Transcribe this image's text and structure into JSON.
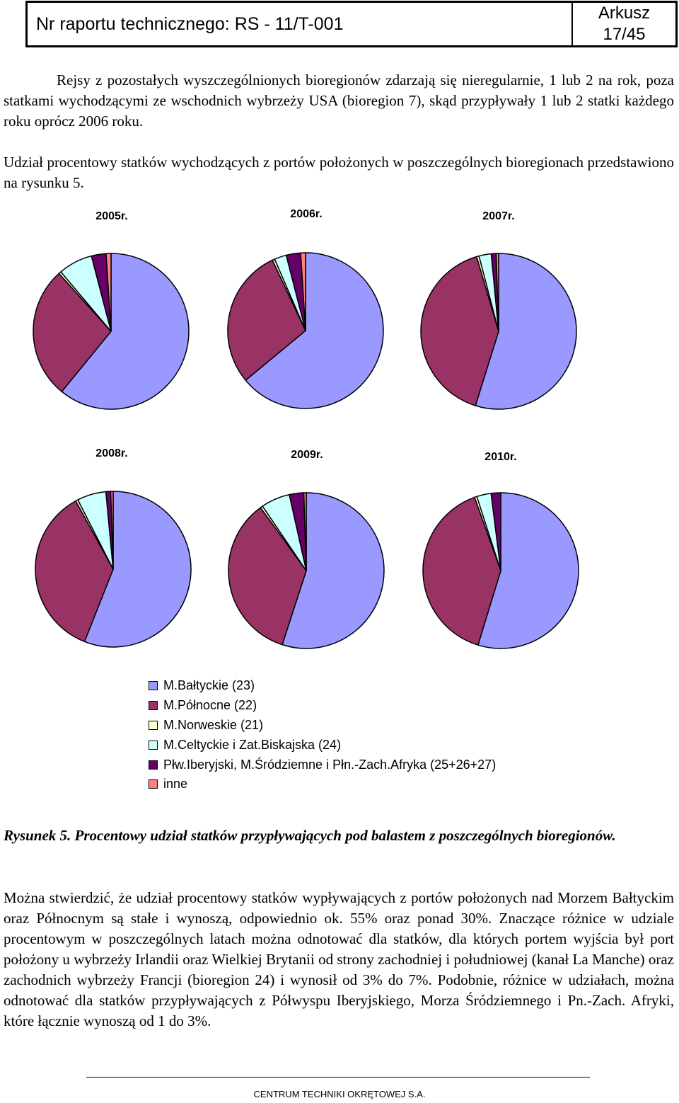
{
  "header": {
    "report_number": "Nr raportu technicznego: RS - 11/T-001",
    "sheet_label": "Arkusz",
    "sheet_number": "17/45"
  },
  "paragraphs": {
    "p1": "Rejsy z pozostałych wyszczególnionych bioregionów zdarzają się nieregularnie, 1 lub 2 na rok, poza statkami wychodzącymi ze wschodnich wybrzeży USA (bioregion 7), skąd przypływały 1 lub 2 statki każdego roku oprócz 2006 roku.",
    "p2": "Udział procentowy statków wychodzących z portów położonych w poszczególnych bioregionach przedstawiono na rysunku 5.",
    "p3": "Można stwierdzić, że udział procentowy statków wypływających z portów położonych nad Morzem Bałtyckim oraz Północnym są stałe i wynoszą, odpowiednio ok. 55% oraz ponad 30%. Znaczące różnice w udziale procentowym w poszczególnych latach można odnotować dla statków, dla których portem wyjścia był port położony u wybrzeży Irlandii oraz Wielkiej Brytanii od strony zachodniej i południowej (kanał La Manche) oraz zachodnich wybrzeży Francji (bioregion 24) i wynosił od 3% do 7%. Podobnie, różnice w udziałach, można odnotować dla statków przypływających z Półwyspu Iberyjskiego, Morza Śródziemnego i Pn.-Zach. Afryki, które łącznie wynoszą od 1 do 3%."
  },
  "caption": "Rysunek 5. Procentowy udział statków przypływających pod balastem z poszczególnych bioregionów.",
  "footer": "CENTRUM TECHNIKI OKRĘTOWEJ S.A.",
  "colors": {
    "baltic": "#9999ff",
    "north": "#993366",
    "norwegian": "#ffffcc",
    "celtic": "#ccffff",
    "iberian": "#660066",
    "other": "#ff8080"
  },
  "chart_data": {
    "type": "pie",
    "legend": [
      {
        "label": "M.Bałtyckie (23)",
        "color": "#9999ff"
      },
      {
        "label": "M.Północne (22)",
        "color": "#993366"
      },
      {
        "label": "M.Norweskie (21)",
        "color": "#ffffcc"
      },
      {
        "label": "M.Celtyckie i Zat.Biskajska (24)",
        "color": "#ccffff"
      },
      {
        "label": "Płw.Iberyjski, M.Śródziemne i Płn.-Zach.Afryka (25+26+27)",
        "color": "#660066"
      },
      {
        "label": "inne",
        "color": "#ff8080"
      }
    ],
    "pies": [
      {
        "title": "2005r.",
        "values": [
          60,
          27,
          0.5,
          7,
          3,
          1
        ]
      },
      {
        "title": "2006r.",
        "values": [
          64,
          29,
          0.5,
          2.5,
          3,
          1
        ]
      },
      {
        "title": "2007r.",
        "values": [
          54,
          40,
          0.5,
          2.5,
          1,
          0.5
        ]
      },
      {
        "title": "2008r.",
        "values": [
          56,
          36,
          0.5,
          6,
          1,
          0.5
        ]
      },
      {
        "title": "2009r.",
        "values": [
          55,
          35,
          0.5,
          6,
          3,
          0.5
        ]
      },
      {
        "title": "2010r.",
        "values": [
          55,
          40,
          0.5,
          3,
          2,
          0
        ]
      }
    ]
  }
}
